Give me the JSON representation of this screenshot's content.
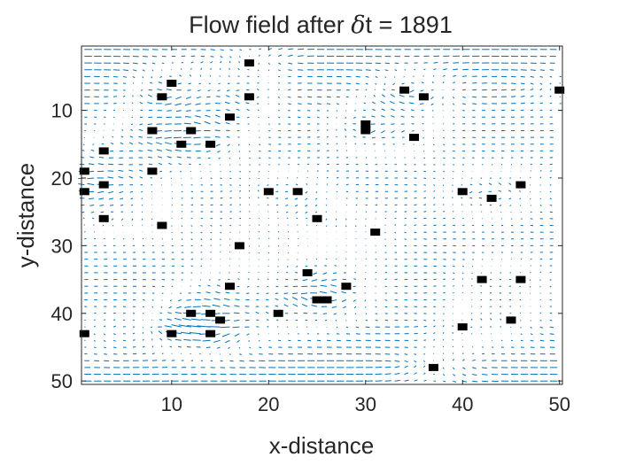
{
  "chart_data": {
    "type": "quiver",
    "title_prefix": "Flow field after ",
    "title_symbol": "δ",
    "title_suffix": "t = 1891",
    "xlabel": "x-distance",
    "ylabel": "y-distance",
    "xlim": [
      0.7,
      50.3
    ],
    "ylim": [
      0.5,
      50.5
    ],
    "y_reversed": true,
    "xticks": [
      10,
      20,
      30,
      40,
      50
    ],
    "yticks": [
      10,
      20,
      30,
      40,
      50
    ],
    "grid": false,
    "legend": "none",
    "arrow_color": "#0072BD",
    "obstacle_color": "#000000",
    "field_grid": {
      "x_from": 1,
      "x_to": 50,
      "y_from": 1,
      "y_to": 50,
      "step": 1
    },
    "obstacles": [
      {
        "x": 18,
        "y": 3
      },
      {
        "x": 10,
        "y": 6
      },
      {
        "x": 9,
        "y": 8
      },
      {
        "x": 18,
        "y": 8
      },
      {
        "x": 34,
        "y": 7
      },
      {
        "x": 36,
        "y": 8
      },
      {
        "x": 50,
        "y": 7
      },
      {
        "x": 16,
        "y": 11
      },
      {
        "x": 30,
        "y": 12
      },
      {
        "x": 30,
        "y": 13
      },
      {
        "x": 8,
        "y": 13
      },
      {
        "x": 12,
        "y": 13
      },
      {
        "x": 35,
        "y": 14
      },
      {
        "x": 11,
        "y": 15
      },
      {
        "x": 14,
        "y": 15
      },
      {
        "x": 3,
        "y": 16
      },
      {
        "x": 1,
        "y": 19
      },
      {
        "x": 8,
        "y": 19
      },
      {
        "x": 3,
        "y": 21
      },
      {
        "x": 46,
        "y": 21
      },
      {
        "x": 1,
        "y": 22
      },
      {
        "x": 20,
        "y": 22
      },
      {
        "x": 23,
        "y": 22
      },
      {
        "x": 40,
        "y": 22
      },
      {
        "x": 43,
        "y": 23
      },
      {
        "x": 3,
        "y": 26
      },
      {
        "x": 25,
        "y": 26
      },
      {
        "x": 9,
        "y": 27
      },
      {
        "x": 31,
        "y": 28
      },
      {
        "x": 17,
        "y": 30
      },
      {
        "x": 24,
        "y": 34
      },
      {
        "x": 42,
        "y": 35
      },
      {
        "x": 46,
        "y": 35
      },
      {
        "x": 16,
        "y": 36
      },
      {
        "x": 28,
        "y": 36
      },
      {
        "x": 25,
        "y": 38
      },
      {
        "x": 26,
        "y": 38
      },
      {
        "x": 12,
        "y": 40
      },
      {
        "x": 14,
        "y": 40
      },
      {
        "x": 21,
        "y": 40
      },
      {
        "x": 15,
        "y": 41
      },
      {
        "x": 45,
        "y": 41
      },
      {
        "x": 40,
        "y": 42
      },
      {
        "x": 1,
        "y": 43
      },
      {
        "x": 10,
        "y": 43
      },
      {
        "x": 14,
        "y": 43
      },
      {
        "x": 37,
        "y": 48
      }
    ]
  }
}
